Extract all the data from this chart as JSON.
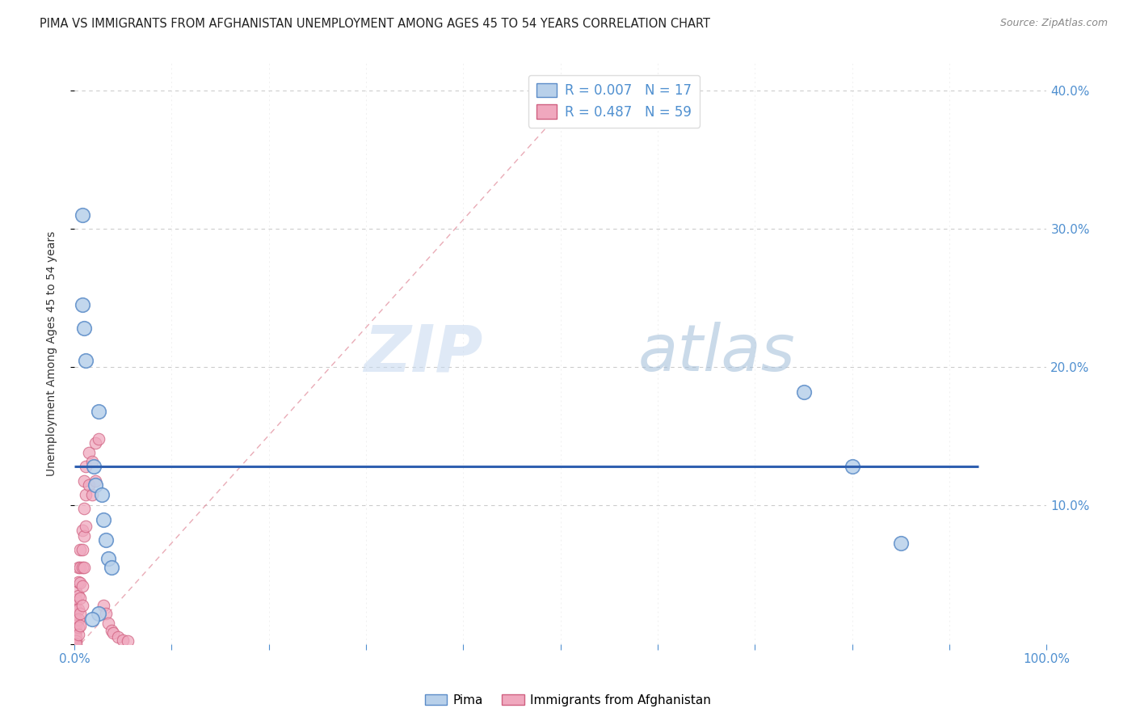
{
  "title": "PIMA VS IMMIGRANTS FROM AFGHANISTAN UNEMPLOYMENT AMONG AGES 45 TO 54 YEARS CORRELATION CHART",
  "source": "Source: ZipAtlas.com",
  "ylabel": "Unemployment Among Ages 45 to 54 years",
  "xlim": [
    0,
    1.0
  ],
  "ylim": [
    0,
    0.42
  ],
  "xtick_vals": [
    0.0,
    0.1,
    0.2,
    0.3,
    0.4,
    0.5,
    0.6,
    0.7,
    0.8,
    0.9,
    1.0
  ],
  "xtick_labels": [
    "0.0%",
    "",
    "",
    "",
    "",
    "",
    "",
    "",
    "",
    "",
    "100.0%"
  ],
  "ytick_vals": [
    0.0,
    0.1,
    0.2,
    0.3,
    0.4
  ],
  "ytick_labels_right": [
    "",
    "10.0%",
    "20.0%",
    "30.0%",
    "40.0%"
  ],
  "watermark_zip": "ZIP",
  "watermark_atlas": "atlas",
  "legend_r1": "R = 0.007",
  "legend_n1": "N = 17",
  "legend_r2": "R = 0.487",
  "legend_n2": "N = 59",
  "legend_label1": "Pima",
  "legend_label2": "Immigrants from Afghanistan",
  "pima_fill": "#b8d0ea",
  "pima_edge": "#5b8cc8",
  "afg_fill": "#f0a8be",
  "afg_edge": "#d06080",
  "pima_regline_color": "#3060b0",
  "afg_regline_color": "#e08898",
  "mean_line_y": 0.128,
  "regline_x0": 0.0,
  "regline_y0": -0.005,
  "regline_x1": 0.52,
  "regline_y1": 0.4,
  "background_color": "#ffffff",
  "grid_color": "#cccccc",
  "axis_color": "#5090d0",
  "title_color": "#222222",
  "title_fontsize": 10.5,
  "source_color": "#888888",
  "pima_scatter": [
    [
      0.008,
      0.31
    ],
    [
      0.008,
      0.245
    ],
    [
      0.01,
      0.228
    ],
    [
      0.012,
      0.205
    ],
    [
      0.025,
      0.168
    ],
    [
      0.02,
      0.128
    ],
    [
      0.022,
      0.115
    ],
    [
      0.75,
      0.182
    ],
    [
      0.8,
      0.128
    ],
    [
      0.85,
      0.073
    ],
    [
      0.028,
      0.108
    ],
    [
      0.03,
      0.09
    ],
    [
      0.032,
      0.075
    ],
    [
      0.035,
      0.062
    ],
    [
      0.038,
      0.055
    ],
    [
      0.025,
      0.022
    ],
    [
      0.018,
      0.018
    ]
  ],
  "afghanistan_scatter": [
    [
      0.0,
      0.028
    ],
    [
      0.0,
      0.022
    ],
    [
      0.0,
      0.018
    ],
    [
      0.0,
      0.014
    ],
    [
      0.0,
      0.01
    ],
    [
      0.0,
      0.007
    ],
    [
      0.0,
      0.005
    ],
    [
      0.0,
      0.003
    ],
    [
      0.0,
      0.001
    ],
    [
      0.0,
      0.0
    ],
    [
      0.002,
      0.038
    ],
    [
      0.002,
      0.032
    ],
    [
      0.002,
      0.025
    ],
    [
      0.002,
      0.018
    ],
    [
      0.002,
      0.013
    ],
    [
      0.002,
      0.009
    ],
    [
      0.002,
      0.005
    ],
    [
      0.002,
      0.002
    ],
    [
      0.002,
      0.0
    ],
    [
      0.004,
      0.055
    ],
    [
      0.004,
      0.045
    ],
    [
      0.004,
      0.035
    ],
    [
      0.004,
      0.025
    ],
    [
      0.004,
      0.018
    ],
    [
      0.004,
      0.012
    ],
    [
      0.004,
      0.007
    ],
    [
      0.006,
      0.068
    ],
    [
      0.006,
      0.055
    ],
    [
      0.006,
      0.044
    ],
    [
      0.006,
      0.033
    ],
    [
      0.006,
      0.022
    ],
    [
      0.006,
      0.013
    ],
    [
      0.008,
      0.082
    ],
    [
      0.008,
      0.068
    ],
    [
      0.008,
      0.055
    ],
    [
      0.008,
      0.042
    ],
    [
      0.008,
      0.028
    ],
    [
      0.01,
      0.118
    ],
    [
      0.01,
      0.098
    ],
    [
      0.01,
      0.078
    ],
    [
      0.01,
      0.055
    ],
    [
      0.012,
      0.128
    ],
    [
      0.012,
      0.108
    ],
    [
      0.012,
      0.085
    ],
    [
      0.015,
      0.138
    ],
    [
      0.015,
      0.115
    ],
    [
      0.018,
      0.132
    ],
    [
      0.018,
      0.108
    ],
    [
      0.022,
      0.145
    ],
    [
      0.022,
      0.118
    ],
    [
      0.025,
      0.148
    ],
    [
      0.03,
      0.028
    ],
    [
      0.032,
      0.022
    ],
    [
      0.035,
      0.015
    ],
    [
      0.038,
      0.01
    ],
    [
      0.04,
      0.008
    ],
    [
      0.045,
      0.005
    ],
    [
      0.05,
      0.003
    ],
    [
      0.055,
      0.002
    ]
  ]
}
